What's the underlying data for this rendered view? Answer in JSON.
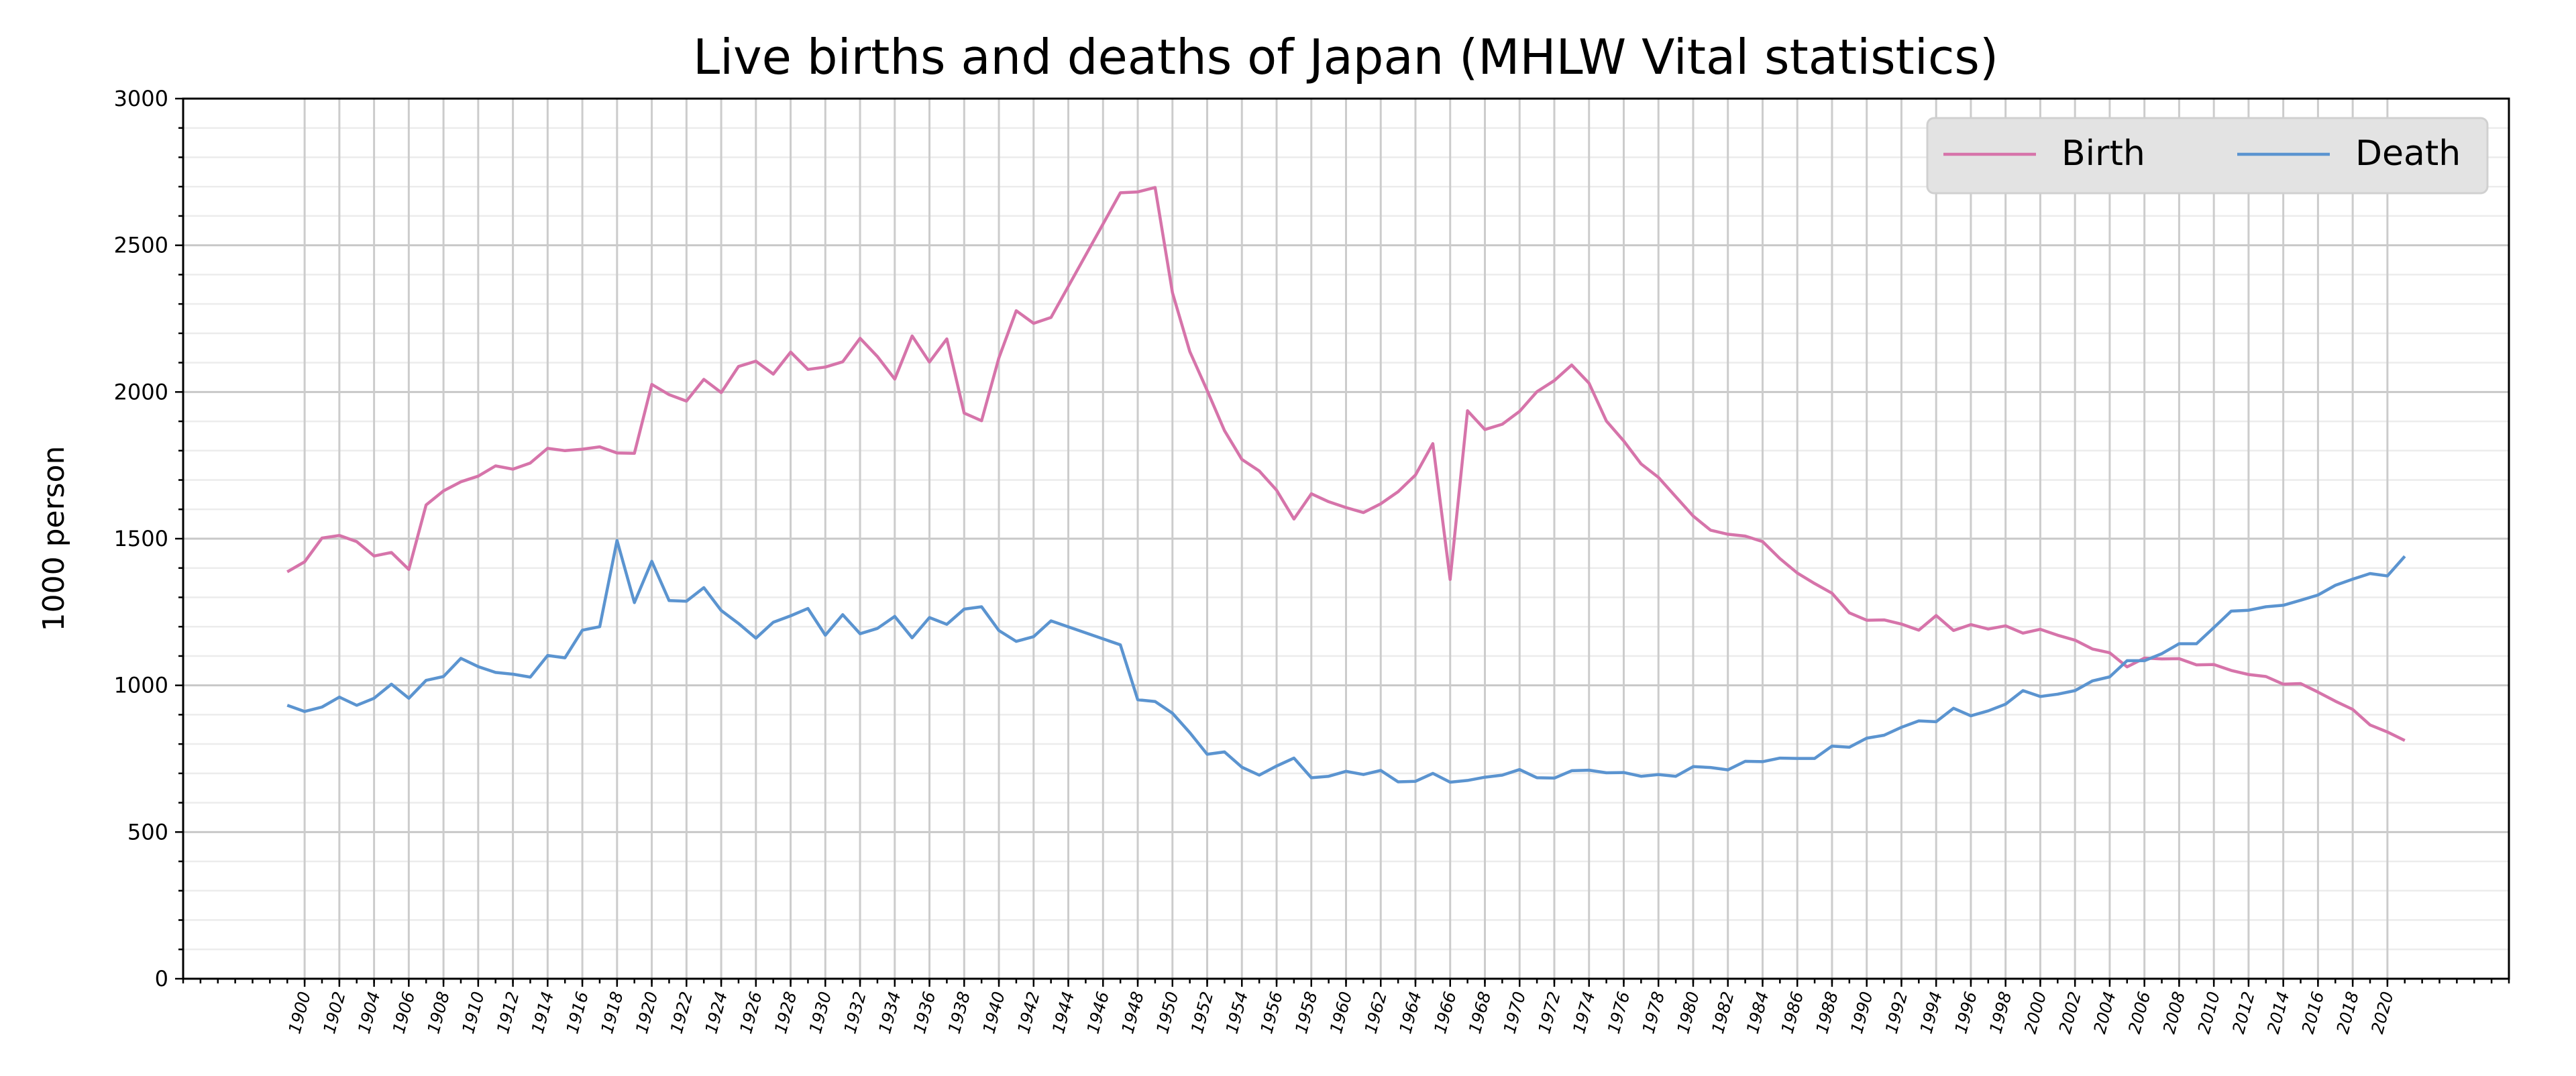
{
  "chart_data": {
    "type": "line",
    "title": "Live births and deaths of Japan (MHLW Vital statistics)",
    "xlabel": "",
    "ylabel": "1000 person",
    "xlim": [
      1893,
      2027
    ],
    "ylim": [
      0,
      3000
    ],
    "yticks": [
      0,
      500,
      1000,
      1500,
      2000,
      2500,
      3000
    ],
    "xticks_step": 2,
    "xticks_range": [
      1900,
      2020
    ],
    "grid": true,
    "legend_position": "top-right",
    "x": [
      1899,
      1900,
      1901,
      1902,
      1903,
      1904,
      1905,
      1906,
      1907,
      1908,
      1909,
      1910,
      1911,
      1912,
      1913,
      1914,
      1915,
      1916,
      1917,
      1918,
      1919,
      1920,
      1921,
      1922,
      1923,
      1924,
      1925,
      1926,
      1927,
      1928,
      1929,
      1930,
      1931,
      1932,
      1933,
      1934,
      1935,
      1936,
      1937,
      1938,
      1939,
      1940,
      1941,
      1942,
      1943,
      1947,
      1948,
      1949,
      1950,
      1951,
      1952,
      1953,
      1954,
      1955,
      1956,
      1957,
      1958,
      1959,
      1960,
      1961,
      1962,
      1963,
      1964,
      1965,
      1966,
      1967,
      1968,
      1969,
      1970,
      1971,
      1972,
      1973,
      1974,
      1975,
      1976,
      1977,
      1978,
      1979,
      1980,
      1981,
      1982,
      1983,
      1984,
      1985,
      1986,
      1987,
      1988,
      1989,
      1990,
      1991,
      1992,
      1993,
      1994,
      1995,
      1996,
      1997,
      1998,
      1999,
      2000,
      2001,
      2002,
      2003,
      2004,
      2005,
      2006,
      2007,
      2008,
      2009,
      2010,
      2011,
      2012,
      2013,
      2014,
      2015,
      2016,
      2017,
      2018,
      2019,
      2020,
      2021
    ],
    "series": [
      {
        "name": "Birth",
        "color": "#d674aa",
        "values": [
          1387,
          1421,
          1502,
          1511,
          1490,
          1441,
          1453,
          1395,
          1615,
          1663,
          1694,
          1713,
          1748,
          1737,
          1758,
          1808,
          1800,
          1805,
          1813,
          1792,
          1791,
          2026,
          1991,
          1969,
          2043,
          1998,
          2087,
          2105,
          2061,
          2136,
          2077,
          2085,
          2103,
          2183,
          2121,
          2044,
          2191,
          2102,
          2181,
          1928,
          1902,
          2116,
          2277,
          2234,
          2254,
          2679,
          2682,
          2697,
          2338,
          2138,
          2005,
          1868,
          1770,
          1731,
          1665,
          1567,
          1653,
          1626,
          1606,
          1589,
          1619,
          1660,
          1717,
          1824,
          1361,
          1936,
          1872,
          1890,
          1934,
          2001,
          2039,
          2092,
          2030,
          1901,
          1833,
          1755,
          1709,
          1643,
          1577,
          1529,
          1515,
          1509,
          1490,
          1432,
          1383,
          1347,
          1314,
          1247,
          1222,
          1223,
          1209,
          1188,
          1238,
          1187,
          1207,
          1192,
          1203,
          1178,
          1191,
          1171,
          1154,
          1124,
          1111,
          1063,
          1093,
          1090,
          1091,
          1070,
          1071,
          1051,
          1037,
          1030,
          1004,
          1006,
          977,
          946,
          918,
          865,
          841,
          812
        ]
      },
      {
        "name": "Death",
        "color": "#5b94d0",
        "values": [
          932,
          911,
          926,
          960,
          932,
          956,
          1004,
          956,
          1017,
          1030,
          1092,
          1064,
          1044,
          1038,
          1028,
          1102,
          1094,
          1188,
          1200,
          1494,
          1282,
          1423,
          1289,
          1287,
          1333,
          1255,
          1211,
          1161,
          1215,
          1237,
          1262,
          1171,
          1241,
          1176,
          1194,
          1235,
          1162,
          1231,
          1208,
          1260,
          1268,
          1187,
          1150,
          1166,
          1220,
          1138,
          951,
          945,
          905,
          839,
          765,
          773,
          721,
          694,
          725,
          752,
          685,
          690,
          707,
          696,
          710,
          671,
          673,
          700,
          670,
          676,
          687,
          694,
          713,
          685,
          684,
          709,
          711,
          702,
          703,
          690,
          696,
          690,
          723,
          720,
          712,
          741,
          740,
          752,
          751,
          751,
          793,
          789,
          820,
          830,
          857,
          879,
          876,
          922,
          896,
          913,
          936,
          982,
          962,
          970,
          982,
          1015,
          1029,
          1084,
          1084,
          1108,
          1142,
          1142,
          1197,
          1253,
          1256,
          1268,
          1273,
          1290,
          1308,
          1341,
          1362,
          1381,
          1373,
          1440
        ]
      }
    ]
  }
}
